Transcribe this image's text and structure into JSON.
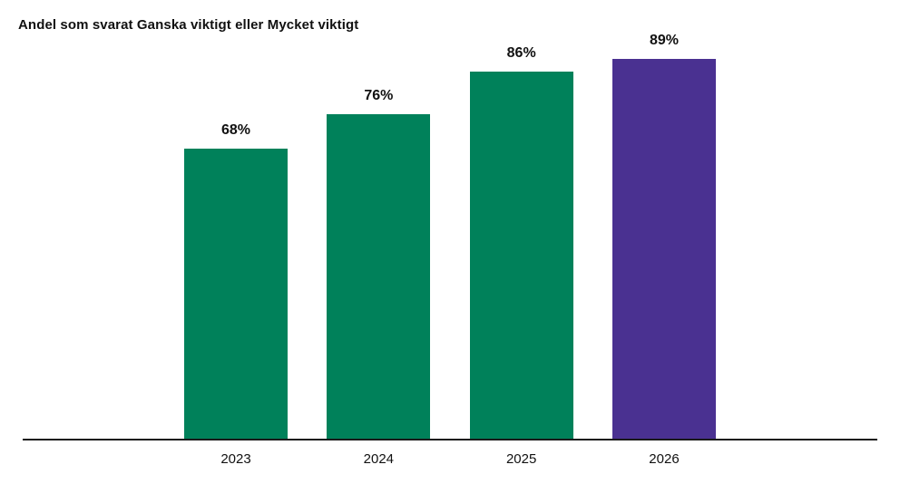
{
  "chart_data": {
    "type": "bar",
    "title": "Andel som svarat Ganska viktigt eller Mycket viktigt",
    "categories": [
      "2023",
      "2024",
      "2025",
      "2026"
    ],
    "values": [
      68,
      76,
      86,
      89
    ],
    "value_labels": [
      "68%",
      "76%",
      "86%",
      "89%"
    ],
    "colors": [
      "#00815A",
      "#00815A",
      "#00815A",
      "#4A3191"
    ],
    "xlabel": "",
    "ylabel": "",
    "ylim": [
      0,
      100
    ],
    "grid": false,
    "legend": null,
    "accent_green": "#00815A",
    "accent_purple": "#4A3191",
    "axis_line_color": "#1a1a1a",
    "text_color": "#111111",
    "background_color": "#ffffff"
  }
}
